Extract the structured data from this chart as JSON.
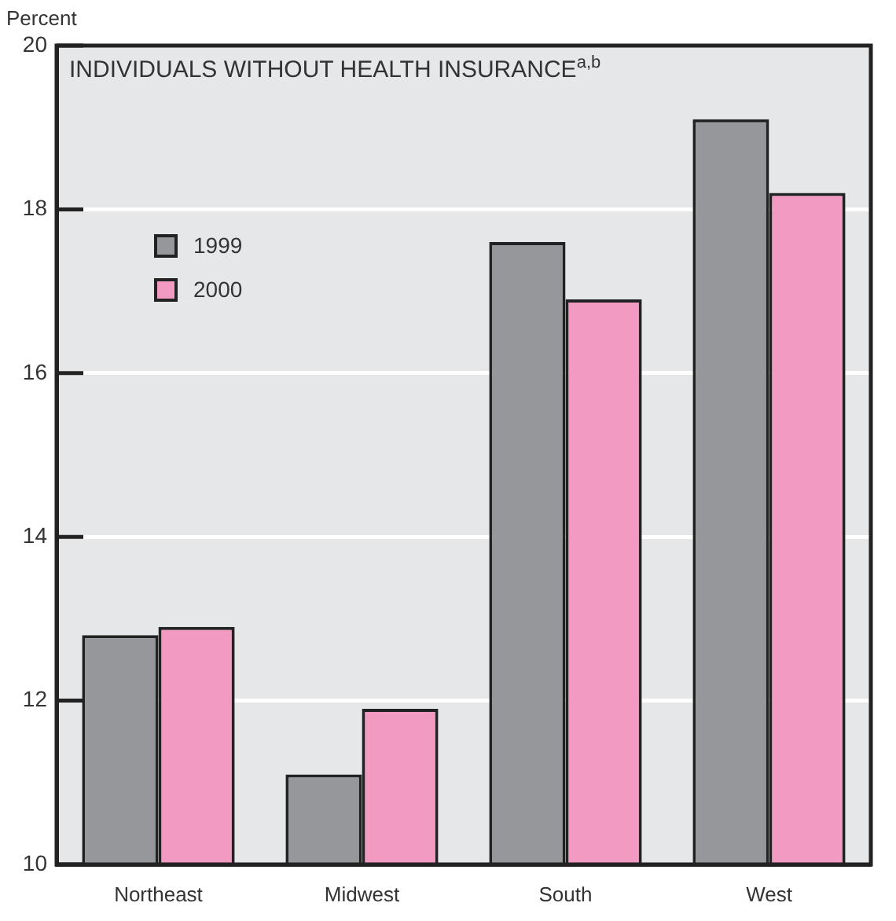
{
  "chart_data": {
    "type": "bar",
    "title": "INDIVIDUALS  WITHOUT HEALTH INSURANCE$^{a,b}$",
    "ylabel": "Percent",
    "categories": [
      "Northeast",
      "Midwest",
      "South",
      "West"
    ],
    "series": [
      {
        "name": "1999",
        "color": "#96979b",
        "values": [
          12.8,
          11.1,
          17.6,
          19.1
        ]
      },
      {
        "name": "2000",
        "color": "#f39ac2",
        "values": [
          12.9,
          11.9,
          16.9,
          18.2
        ]
      }
    ],
    "ylim": [
      10,
      20
    ],
    "yticks": [
      10,
      12,
      14,
      16,
      18,
      20
    ],
    "grid": "y",
    "legend": "top left"
  }
}
